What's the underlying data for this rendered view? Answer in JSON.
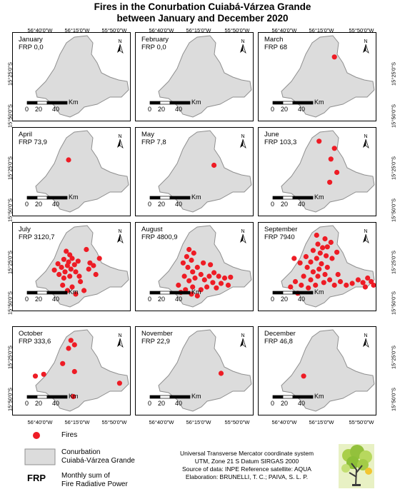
{
  "title": {
    "line1": "Fires in the Conurbation Cuiabá-Várzea Grande",
    "line2": "between January and December 2020"
  },
  "graticule": {
    "lon_labels": [
      "56°40'0\"W",
      "56°15'0\"W",
      "55°50'0\"W"
    ],
    "lat_labels": [
      "15°25'0\"S",
      "15°50'0\"S"
    ]
  },
  "scalebar": {
    "ticks": [
      "0",
      "20",
      "40"
    ],
    "unit": "Km"
  },
  "north_label": "N",
  "panels": [
    {
      "month": "January",
      "frp": "FRP 0,0",
      "fires": []
    },
    {
      "month": "February",
      "frp": "FRP 0,0",
      "fires": []
    },
    {
      "month": "March",
      "frp": "FRP 68",
      "fires": [
        [
          0.64,
          0.27
        ]
      ]
    },
    {
      "month": "April",
      "frp": "FRP 73,9",
      "fires": [
        [
          0.47,
          0.36
        ]
      ]
    },
    {
      "month": "May",
      "frp": "FRP 7,8",
      "fires": [
        [
          0.66,
          0.42
        ]
      ]
    },
    {
      "month": "June",
      "frp": "FRP 103,3",
      "fires": [
        [
          0.51,
          0.15
        ],
        [
          0.64,
          0.23
        ],
        [
          0.61,
          0.35
        ],
        [
          0.66,
          0.5
        ],
        [
          0.6,
          0.61
        ]
      ]
    },
    {
      "month": "July",
      "frp": "FRP 3120,7",
      "fires": [
        [
          0.45,
          0.32
        ],
        [
          0.48,
          0.36
        ],
        [
          0.5,
          0.4
        ],
        [
          0.47,
          0.44
        ],
        [
          0.43,
          0.41
        ],
        [
          0.46,
          0.48
        ],
        [
          0.49,
          0.52
        ],
        [
          0.44,
          0.55
        ],
        [
          0.41,
          0.5
        ],
        [
          0.52,
          0.47
        ],
        [
          0.55,
          0.43
        ],
        [
          0.53,
          0.55
        ],
        [
          0.48,
          0.6
        ],
        [
          0.43,
          0.62
        ],
        [
          0.39,
          0.58
        ],
        [
          0.56,
          0.6
        ],
        [
          0.62,
          0.3
        ],
        [
          0.65,
          0.45
        ],
        [
          0.64,
          0.52
        ],
        [
          0.68,
          0.48
        ],
        [
          0.57,
          0.66
        ],
        [
          0.5,
          0.72
        ],
        [
          0.46,
          0.76
        ],
        [
          0.53,
          0.8
        ],
        [
          0.6,
          0.76
        ],
        [
          0.42,
          0.7
        ],
        [
          0.7,
          0.58
        ],
        [
          0.35,
          0.53
        ],
        [
          0.38,
          0.46
        ],
        [
          0.73,
          0.4
        ]
      ]
    },
    {
      "month": "August",
      "frp": "FRP 4800,9",
      "fires": [
        [
          0.45,
          0.3
        ],
        [
          0.49,
          0.34
        ],
        [
          0.43,
          0.38
        ],
        [
          0.47,
          0.42
        ],
        [
          0.4,
          0.45
        ],
        [
          0.44,
          0.5
        ],
        [
          0.48,
          0.55
        ],
        [
          0.52,
          0.5
        ],
        [
          0.55,
          0.58
        ],
        [
          0.5,
          0.62
        ],
        [
          0.45,
          0.65
        ],
        [
          0.41,
          0.6
        ],
        [
          0.58,
          0.64
        ],
        [
          0.62,
          0.6
        ],
        [
          0.65,
          0.67
        ],
        [
          0.6,
          0.72
        ],
        [
          0.55,
          0.75
        ],
        [
          0.48,
          0.72
        ],
        [
          0.42,
          0.75
        ],
        [
          0.68,
          0.73
        ],
        [
          0.72,
          0.68
        ],
        [
          0.66,
          0.56
        ],
        [
          0.7,
          0.6
        ],
        [
          0.75,
          0.62
        ],
        [
          0.78,
          0.7
        ],
        [
          0.63,
          0.47
        ],
        [
          0.57,
          0.45
        ],
        [
          0.36,
          0.7
        ],
        [
          0.38,
          0.78
        ],
        [
          0.52,
          0.82
        ],
        [
          0.47,
          0.8
        ],
        [
          0.8,
          0.61
        ]
      ]
    },
    {
      "month": "September",
      "frp": "FRP 7940",
      "fires": [
        [
          0.49,
          0.14
        ],
        [
          0.56,
          0.18
        ],
        [
          0.5,
          0.24
        ],
        [
          0.54,
          0.28
        ],
        [
          0.46,
          0.31
        ],
        [
          0.52,
          0.34
        ],
        [
          0.57,
          0.37
        ],
        [
          0.49,
          0.4
        ],
        [
          0.44,
          0.44
        ],
        [
          0.53,
          0.46
        ],
        [
          0.58,
          0.5
        ],
        [
          0.51,
          0.52
        ],
        [
          0.46,
          0.55
        ],
        [
          0.41,
          0.5
        ],
        [
          0.56,
          0.58
        ],
        [
          0.5,
          0.6
        ],
        [
          0.44,
          0.64
        ],
        [
          0.38,
          0.6
        ],
        [
          0.36,
          0.7
        ],
        [
          0.42,
          0.73
        ],
        [
          0.48,
          0.7
        ],
        [
          0.55,
          0.67
        ],
        [
          0.6,
          0.64
        ],
        [
          0.64,
          0.7
        ],
        [
          0.69,
          0.66
        ],
        [
          0.74,
          0.7
        ],
        [
          0.79,
          0.68
        ],
        [
          0.84,
          0.64
        ],
        [
          0.88,
          0.67
        ],
        [
          0.92,
          0.62
        ],
        [
          0.95,
          0.66
        ],
        [
          0.9,
          0.72
        ],
        [
          0.97,
          0.7
        ],
        [
          0.31,
          0.66
        ],
        [
          0.27,
          0.72
        ],
        [
          0.33,
          0.79
        ],
        [
          0.62,
          0.4
        ],
        [
          0.66,
          0.33
        ],
        [
          0.58,
          0.27
        ],
        [
          0.61,
          0.22
        ],
        [
          0.4,
          0.38
        ],
        [
          0.35,
          0.45
        ],
        [
          0.3,
          0.4
        ],
        [
          0.67,
          0.58
        ]
      ]
    },
    {
      "month": "October",
      "frp": "FRP 333,6",
      "fires": [
        [
          0.49,
          0.15
        ],
        [
          0.52,
          0.2
        ],
        [
          0.47,
          0.24
        ],
        [
          0.52,
          0.5
        ],
        [
          0.42,
          0.41
        ],
        [
          0.19,
          0.55
        ],
        [
          0.26,
          0.53
        ],
        [
          0.9,
          0.63
        ],
        [
          0.51,
          0.78
        ]
      ]
    },
    {
      "month": "November",
      "frp": "FRP 22,9",
      "fires": [
        [
          0.72,
          0.52
        ]
      ]
    },
    {
      "month": "December",
      "frp": "FRP 46,8",
      "fires": [
        [
          0.38,
          0.55
        ]
      ]
    }
  ],
  "legend": {
    "fires": "Fires",
    "conurbation_line1": "Conurbation",
    "conurbation_line2": "Cuiabá-Várzea Grande",
    "frp_abbr": "FRP",
    "frp_line1": "Monthly sum of",
    "frp_line2": "Fire Radiative Power"
  },
  "metadata": {
    "line1": "Universal Transverse Mercator coordinate system",
    "line2": "UTM, Zone 21 S  Datum SIRGAS 2000",
    "line3": "Source of data: INPE Reference satellite: AQUA",
    "line4": "Elaboration: BRUNELLI, T. C.; PAIVA, S. L. P."
  },
  "colors": {
    "fire": "#ee1c25",
    "area_fill": "#dcdcdc",
    "area_stroke": "#8f8f8f"
  }
}
